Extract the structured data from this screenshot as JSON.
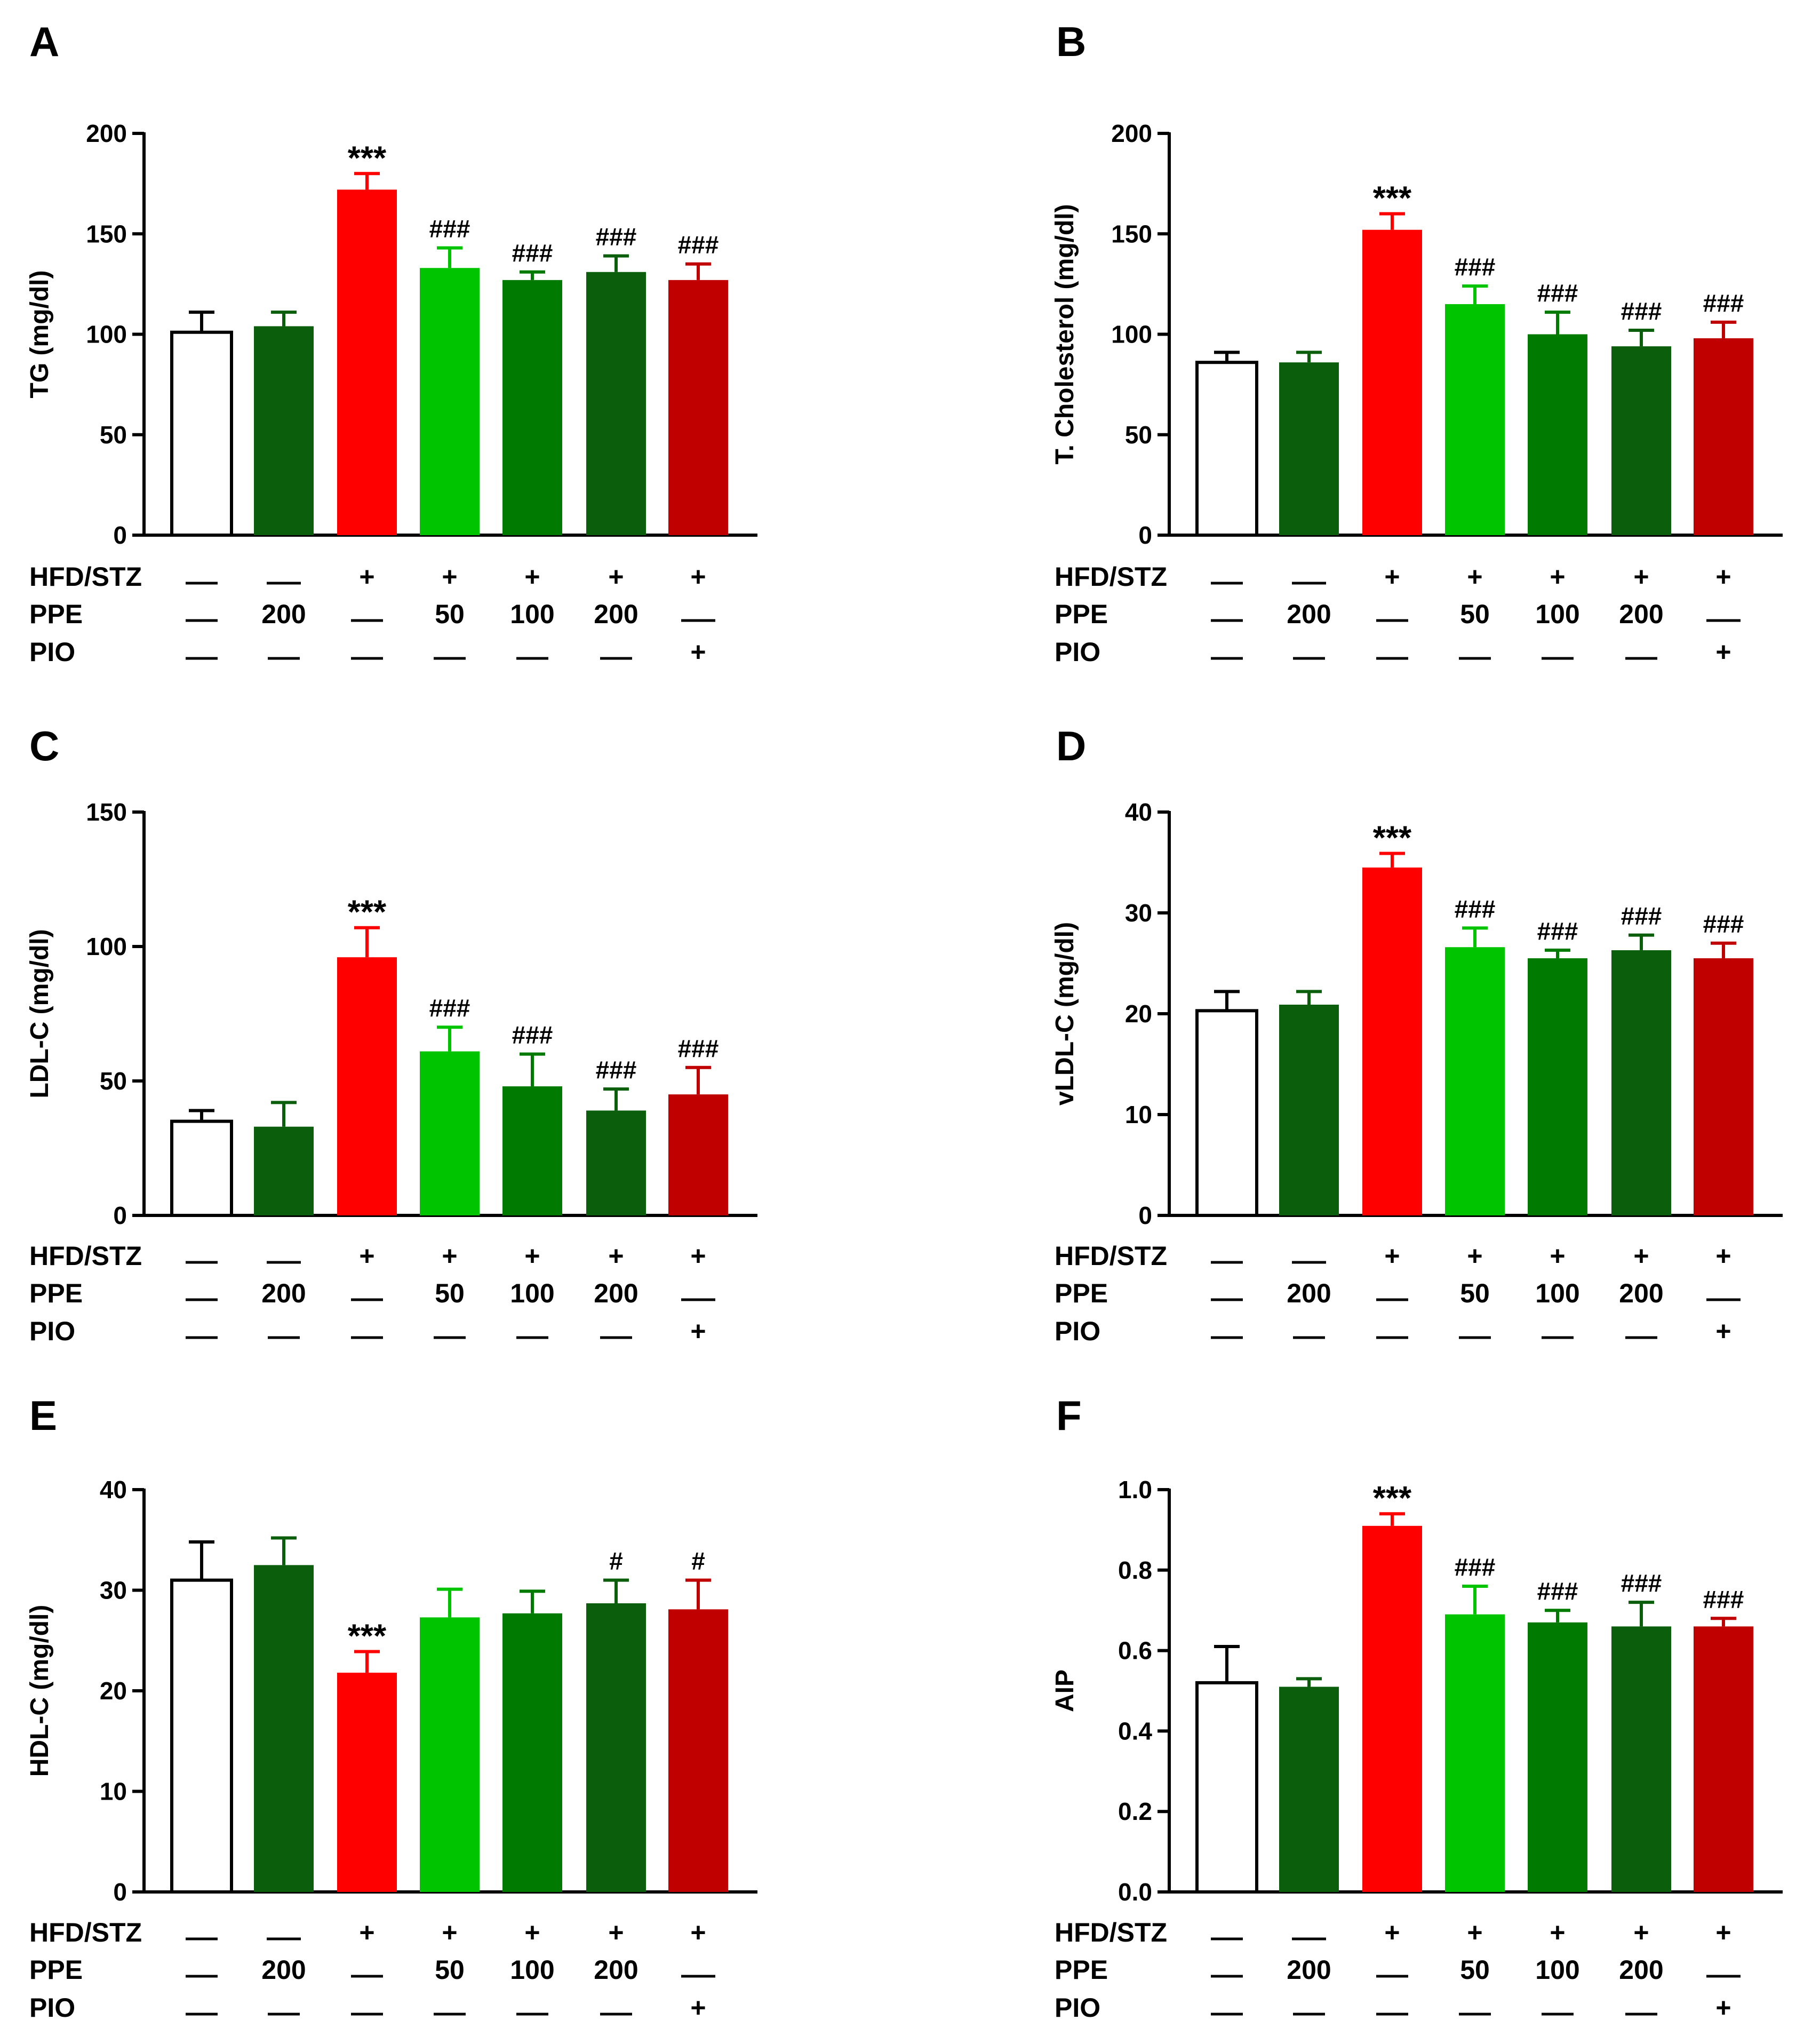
{
  "figure": {
    "row_labels": [
      "HFD/STZ",
      "PPE",
      "PIO"
    ],
    "groups": [
      {
        "HFD/STZ": "—",
        "PPE": "—",
        "PIO": "—"
      },
      {
        "HFD/STZ": "—",
        "PPE": "200",
        "PIO": "—"
      },
      {
        "HFD/STZ": "+",
        "PPE": "—",
        "PIO": "—"
      },
      {
        "HFD/STZ": "+",
        "PPE": "50",
        "PIO": "—"
      },
      {
        "HFD/STZ": "+",
        "PPE": "100",
        "PIO": "—"
      },
      {
        "HFD/STZ": "+",
        "PPE": "200",
        "PIO": "—"
      },
      {
        "HFD/STZ": "+",
        "PPE": "—",
        "PIO": "+"
      }
    ],
    "bar_colors": [
      "#ffffff",
      "#0b5e0b",
      "#ff0000",
      "#00c400",
      "#007a00",
      "#0b5e0b",
      "#c00000"
    ],
    "error_colors": [
      "#000000",
      "#0b5e0b",
      "#ff0000",
      "#00c400",
      "#007a00",
      "#0b5e0b",
      "#c00000"
    ]
  },
  "chart_data": [
    {
      "panel": "A",
      "type": "bar",
      "ylabel": "TG (mg/dl)",
      "ylim": [
        0,
        200
      ],
      "yticks": [
        0,
        50,
        100,
        150,
        200
      ],
      "tick_labels": [
        "0",
        "50",
        "100",
        "150",
        "200"
      ],
      "values": [
        101,
        104,
        172,
        133,
        127,
        131,
        127
      ],
      "errors": [
        10,
        7,
        8,
        10,
        4,
        8,
        8
      ],
      "significance": [
        "",
        "",
        "***",
        "###",
        "###",
        "###",
        "###"
      ]
    },
    {
      "panel": "B",
      "type": "bar",
      "ylabel": "T. Cholesterol (mg/dl)",
      "ylim": [
        0,
        200
      ],
      "yticks": [
        0,
        50,
        100,
        150,
        200
      ],
      "tick_labels": [
        "0",
        "50",
        "100",
        "150",
        "200"
      ],
      "values": [
        86,
        86,
        152,
        115,
        100,
        94,
        98
      ],
      "errors": [
        5,
        5,
        8,
        9,
        11,
        8,
        8
      ],
      "significance": [
        "",
        "",
        "***",
        "###",
        "###",
        "###",
        "###"
      ]
    },
    {
      "panel": "C",
      "type": "bar",
      "ylabel": "LDL-C (mg/dl)",
      "ylim": [
        0,
        150
      ],
      "yticks": [
        0,
        50,
        100,
        150
      ],
      "tick_labels": [
        "0",
        "50",
        "100",
        "150"
      ],
      "values": [
        35,
        33,
        96,
        61,
        48,
        39,
        45
      ],
      "errors": [
        4,
        9,
        11,
        9,
        12,
        8,
        10
      ],
      "significance": [
        "",
        "",
        "***",
        "###",
        "###",
        "###",
        "###"
      ]
    },
    {
      "panel": "D",
      "type": "bar",
      "ylabel": "vLDL-C (mg/dl)",
      "ylim": [
        0,
        40
      ],
      "yticks": [
        0,
        10,
        20,
        30,
        40
      ],
      "tick_labels": [
        "0",
        "10",
        "20",
        "30",
        "40"
      ],
      "values": [
        20.3,
        20.9,
        34.5,
        26.6,
        25.5,
        26.3,
        25.5
      ],
      "errors": [
        1.9,
        1.3,
        1.4,
        1.9,
        0.8,
        1.5,
        1.5
      ],
      "significance": [
        "",
        "",
        "***",
        "###",
        "###",
        "###",
        "###"
      ]
    },
    {
      "panel": "E",
      "type": "bar",
      "ylabel": "HDL-C (mg/dl)",
      "ylim": [
        0,
        40
      ],
      "yticks": [
        0,
        10,
        20,
        30,
        40
      ],
      "tick_labels": [
        "0",
        "10",
        "20",
        "30",
        "40"
      ],
      "values": [
        31,
        32.5,
        21.8,
        27.3,
        27.7,
        28.7,
        28.1
      ],
      "errors": [
        3.8,
        2.7,
        2.1,
        2.8,
        2.2,
        2.3,
        2.9
      ],
      "significance": [
        "",
        "",
        "***",
        "",
        "",
        "#",
        "#"
      ]
    },
    {
      "panel": "F",
      "type": "bar",
      "ylabel": "AIP",
      "ylim": [
        0,
        1.0
      ],
      "yticks": [
        0,
        0.2,
        0.4,
        0.6,
        0.8,
        1.0
      ],
      "tick_labels": [
        "0.0",
        "0.2",
        "0.4",
        "0.6",
        "0.8",
        "1.0"
      ],
      "values": [
        0.52,
        0.51,
        0.91,
        0.69,
        0.67,
        0.66,
        0.66
      ],
      "errors": [
        0.09,
        0.02,
        0.03,
        0.07,
        0.03,
        0.06,
        0.02
      ],
      "significance": [
        "",
        "",
        "***",
        "###",
        "###",
        "###",
        "###"
      ]
    }
  ]
}
